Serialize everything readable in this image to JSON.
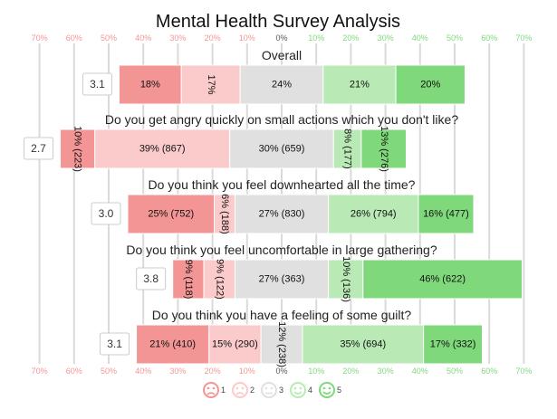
{
  "chart_data": {
    "type": "bar",
    "subtype": "diverging-stacked-likert",
    "title": "Mental Health Survey Analysis",
    "x_ticks": [
      "70%",
      "60%",
      "50%",
      "40%",
      "30%",
      "20%",
      "10%",
      "0%",
      "10%",
      "20%",
      "30%",
      "40%",
      "50%",
      "60%",
      "70%"
    ],
    "xlim": [
      -70,
      70
    ],
    "grid": true,
    "colors": {
      "neg_strong": "#f49595",
      "neg_weak": "#fbcaca",
      "neutral": "#e0e0e0",
      "pos_weak": "#b9eab5",
      "pos_strong": "#7fd97a",
      "tick_neg": "#f49595",
      "tick_zero": "#555555",
      "tick_pos": "#7fd97a"
    },
    "legend": {
      "position": "bottom",
      "labels": [
        "1",
        "2",
        "3",
        "4",
        "5"
      ]
    },
    "rows": [
      {
        "question": "Overall",
        "score": "3.1",
        "segments": [
          {
            "value": 18,
            "label": "18%",
            "vertical": false
          },
          {
            "value": 17,
            "label": "17%",
            "vertical": true
          },
          {
            "value": 24,
            "label": "24%",
            "vertical": false
          },
          {
            "value": 21,
            "label": "21%",
            "vertical": false
          },
          {
            "value": 20,
            "label": "20%",
            "vertical": false
          }
        ]
      },
      {
        "question": "Do you get angry quickly on small actions which you don't like?",
        "score": "2.7",
        "segments": [
          {
            "value": 10,
            "label": "10% (223)",
            "vertical": true
          },
          {
            "value": 39,
            "label": "39% (867)",
            "vertical": false
          },
          {
            "value": 30,
            "label": "30% (659)",
            "vertical": false
          },
          {
            "value": 8,
            "label": "8% (177)",
            "vertical": true
          },
          {
            "value": 13,
            "label": "13% (276)",
            "vertical": true
          }
        ]
      },
      {
        "question": "Do you think you feel downhearted all the time?",
        "score": "3.0",
        "segments": [
          {
            "value": 25,
            "label": "25% (752)",
            "vertical": false
          },
          {
            "value": 6,
            "label": "6% (188)",
            "vertical": true
          },
          {
            "value": 27,
            "label": "27% (830)",
            "vertical": false
          },
          {
            "value": 26,
            "label": "26% (794)",
            "vertical": false
          },
          {
            "value": 16,
            "label": "16% (477)",
            "vertical": false
          }
        ]
      },
      {
        "question": "Do you think you feel uncomfortable in large gathering?",
        "score": "3.8",
        "segments": [
          {
            "value": 9,
            "label": "9% (118)",
            "vertical": true
          },
          {
            "value": 9,
            "label": "9% (122)",
            "vertical": true
          },
          {
            "value": 27,
            "label": "27% (363)",
            "vertical": false
          },
          {
            "value": 10,
            "label": "10% (136)",
            "vertical": true
          },
          {
            "value": 46,
            "label": "46% (622)",
            "vertical": false
          }
        ]
      },
      {
        "question": "Do you think you have a feeling of some guilt?",
        "score": "3.1",
        "segments": [
          {
            "value": 21,
            "label": "21% (410)",
            "vertical": false
          },
          {
            "value": 15,
            "label": "15% (290)",
            "vertical": false
          },
          {
            "value": 12,
            "label": "12% (238)",
            "vertical": true
          },
          {
            "value": 35,
            "label": "35% (694)",
            "vertical": false
          },
          {
            "value": 17,
            "label": "17% (332)",
            "vertical": false
          }
        ]
      }
    ]
  }
}
